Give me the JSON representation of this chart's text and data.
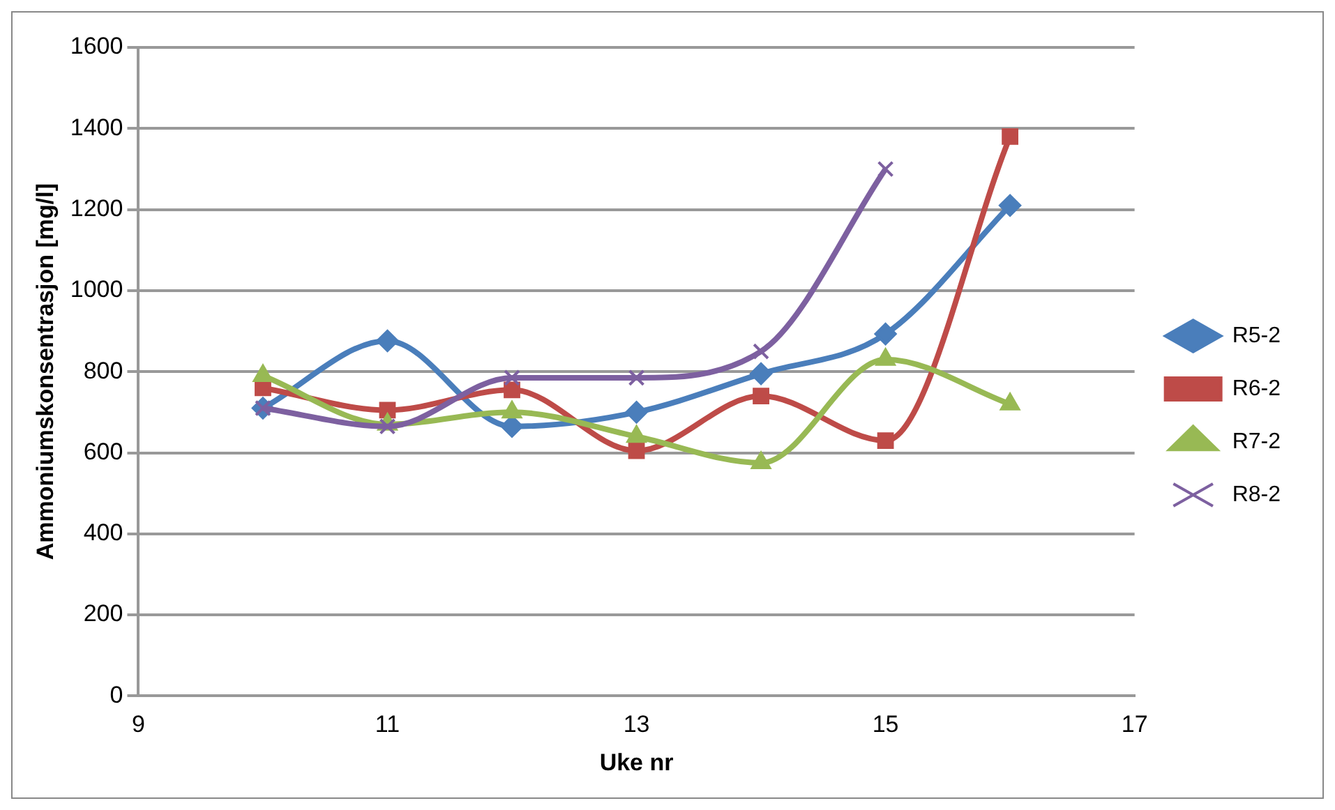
{
  "chart_data": {
    "type": "line",
    "xlabel": "Uke nr",
    "ylabel": "Ammoniumskonsentrasjon [mg/l]",
    "x": [
      10,
      11,
      12,
      13,
      14,
      15,
      16
    ],
    "series": [
      {
        "name": "R5-2",
        "color": "#4a7ebb",
        "marker": "diamond",
        "values": [
          710,
          876,
          665,
          700,
          795,
          893,
          1210
        ]
      },
      {
        "name": "R6-2",
        "color": "#be4b48",
        "marker": "square",
        "values": [
          760,
          705,
          755,
          605,
          740,
          630,
          1380
        ]
      },
      {
        "name": "R7-2",
        "color": "#98b954",
        "marker": "triangle",
        "values": [
          790,
          670,
          700,
          640,
          575,
          830,
          720
        ]
      },
      {
        "name": "R8-2",
        "color": "#7d60a0",
        "marker": "cross",
        "values": [
          710,
          665,
          785,
          785,
          850,
          1300,
          null
        ]
      }
    ],
    "xlim": [
      9,
      17
    ],
    "xticks": [
      9,
      11,
      13,
      15,
      17
    ],
    "ylim": [
      0,
      1600
    ],
    "yticks": [
      0,
      200,
      400,
      600,
      800,
      1000,
      1200,
      1400,
      1600
    ],
    "grid": "y",
    "legend": "right"
  }
}
